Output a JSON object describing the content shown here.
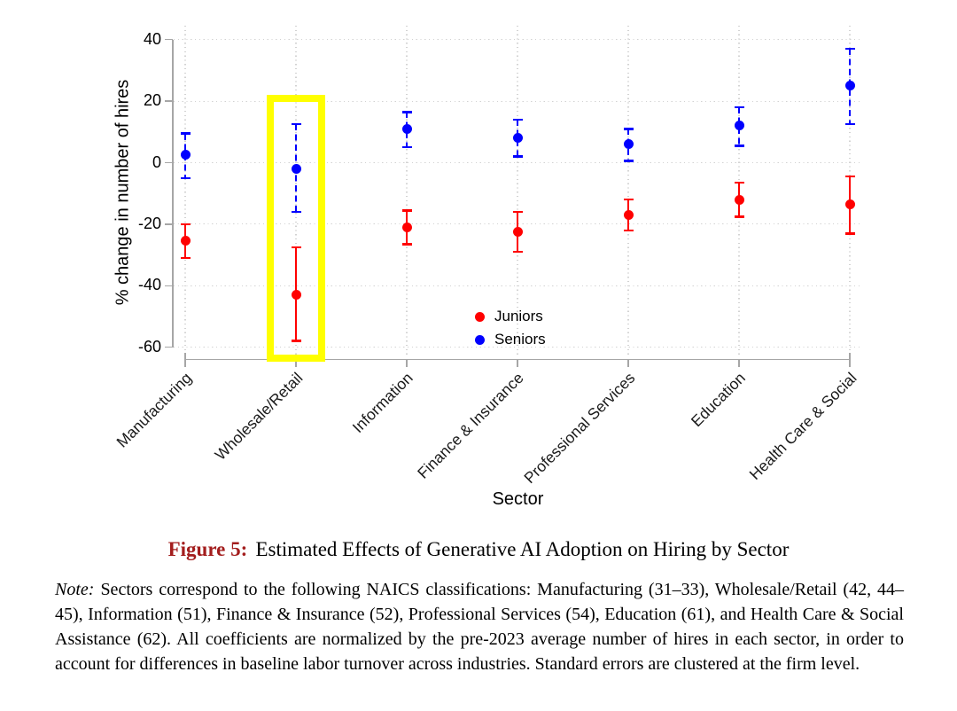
{
  "chart_data": {
    "type": "scatter",
    "title": "",
    "xlabel": "Sector",
    "ylabel": "% change in number of hires",
    "ylim": [
      -65,
      42
    ],
    "y_ticks": [
      40,
      20,
      0,
      -20,
      -40,
      -60
    ],
    "grid": true,
    "categories": [
      "Manufacturing",
      "Wholesale/Retail",
      "Information",
      "Finance & Insurance",
      "Professional Services",
      "Education",
      "Health Care & Social"
    ],
    "series": [
      {
        "name": "Juniors",
        "color": "#ff0000",
        "line_style": "solid",
        "values": [
          -25.5,
          -43,
          -21,
          -22.5,
          -17,
          -12,
          -13.5
        ],
        "ci_low": [
          -31,
          -58,
          -26.5,
          -29,
          -22,
          -17.5,
          -23
        ],
        "ci_high": [
          -20,
          -27.5,
          -15.5,
          -16,
          -12,
          -6.5,
          -4.5
        ]
      },
      {
        "name": "Seniors",
        "color": "#0000ff",
        "line_style": "dashed",
        "values": [
          2.5,
          -2,
          11,
          8,
          6,
          12,
          25
        ],
        "ci_low": [
          -5,
          -16,
          5,
          2,
          0.5,
          5.5,
          12.5
        ],
        "ci_high": [
          9.5,
          12.5,
          16.5,
          14,
          11,
          18,
          37
        ]
      }
    ],
    "highlight": {
      "category": "Wholesale/Retail",
      "color": "#ffff00"
    },
    "legend": {
      "position": "inside-bottom-center",
      "entries": [
        "Juniors",
        "Seniors"
      ]
    }
  },
  "caption": {
    "label": "Figure 5:",
    "label_color": "#A31D1D",
    "text": "Estimated Effects of Generative AI Adoption on Hiring by Sector"
  },
  "note": {
    "label": "Note:",
    "text": "Sectors correspond to the following NAICS classifications: Manufacturing (31–33), Wholesale/Retail (42, 44–45), Information (51), Finance & Insurance (52), Professional Services (54), Education (61), and Health Care & Social Assistance (62). All coefficients are normalized by the pre-2023 average number of hires in each sector, in order to account for differences in baseline labor turnover across industries. Standard errors are clustered at the firm level."
  }
}
